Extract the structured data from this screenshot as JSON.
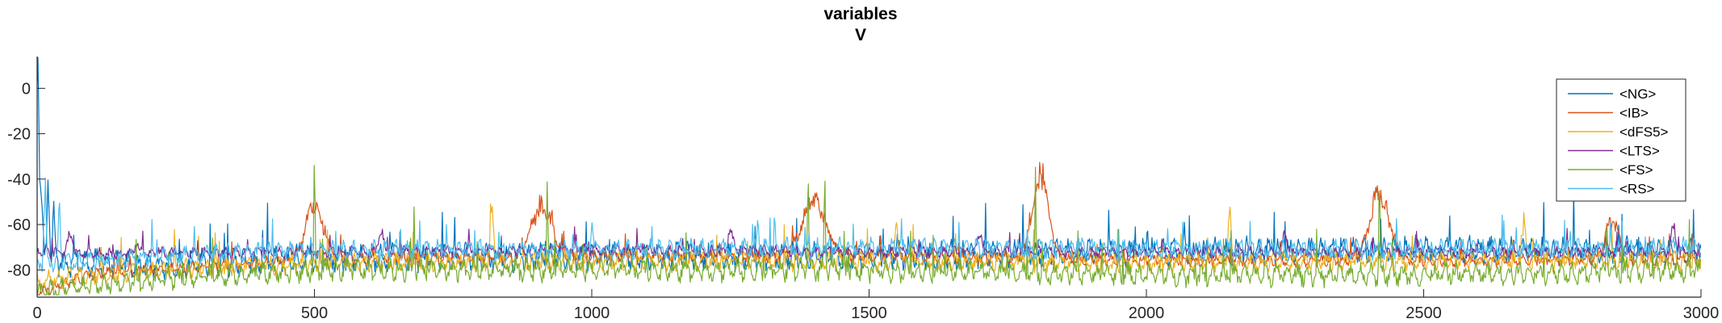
{
  "chart_data": {
    "type": "line",
    "title": "variables",
    "subtitle": "V",
    "xlabel": "",
    "ylabel": "",
    "xlim": [
      0,
      3000
    ],
    "ylim": [
      -92,
      14
    ],
    "x_ticks": [
      0,
      500,
      1000,
      1500,
      2000,
      2500,
      3000
    ],
    "y_ticks": [
      0,
      -20,
      -40,
      -60,
      -80
    ],
    "grid": false,
    "legend_position": "top-right",
    "series": [
      {
        "name": "<NG>",
        "color": "#0072BD",
        "baseline": [
          [
            0,
            -76
          ],
          [
            200,
            -78
          ],
          [
            500,
            -75
          ],
          [
            1000,
            -74
          ],
          [
            1500,
            -74
          ],
          [
            2000,
            -72
          ],
          [
            2500,
            -71
          ],
          [
            3000,
            -72
          ]
        ],
        "fluctuation": 7,
        "events": [
          [
            1,
            12,
            2
          ],
          [
            6,
            -38,
            3
          ],
          [
            20,
            -32,
            2
          ],
          [
            30,
            -52,
            2
          ]
        ]
      },
      {
        "name": "<IB>",
        "color": "#D95319",
        "baseline": [
          [
            0,
            -90
          ],
          [
            100,
            -82
          ],
          [
            500,
            -75
          ],
          [
            1000,
            -74
          ],
          [
            1500,
            -74
          ],
          [
            2000,
            -76
          ],
          [
            2500,
            -76
          ],
          [
            3000,
            -75
          ]
        ],
        "fluctuation": 3,
        "events": [
          [
            500,
            -48,
            16
          ],
          [
            910,
            -48,
            18
          ],
          [
            1400,
            -46,
            22
          ],
          [
            1810,
            -30,
            14
          ],
          [
            2420,
            -43,
            18
          ],
          [
            2840,
            -55,
            12
          ]
        ]
      },
      {
        "name": "<dFS5>",
        "color": "#EDB120",
        "baseline": [
          [
            0,
            -85
          ],
          [
            200,
            -80
          ],
          [
            500,
            -77
          ],
          [
            1000,
            -76
          ],
          [
            1500,
            -76
          ],
          [
            2000,
            -77
          ],
          [
            2500,
            -76
          ],
          [
            3000,
            -76
          ]
        ],
        "fluctuation": 5,
        "events": [
          [
            820,
            -50,
            3
          ],
          [
            1550,
            -55,
            3
          ],
          [
            2150,
            -52,
            3
          ],
          [
            2680,
            -55,
            3
          ]
        ]
      },
      {
        "name": "<LTS>",
        "color": "#7E2F8E",
        "baseline": [
          [
            0,
            -72
          ],
          [
            100,
            -73
          ],
          [
            500,
            -72
          ],
          [
            1000,
            -71
          ],
          [
            1500,
            -72
          ],
          [
            2000,
            -72
          ],
          [
            2500,
            -72
          ],
          [
            3000,
            -72
          ]
        ],
        "fluctuation": 3,
        "events": [
          [
            60,
            -62,
            4
          ],
          [
            180,
            -66,
            3
          ],
          [
            620,
            -62,
            4
          ],
          [
            1250,
            -60,
            4
          ],
          [
            1700,
            -62,
            4
          ],
          [
            2250,
            -62,
            4
          ],
          [
            2950,
            -60,
            4
          ]
        ]
      },
      {
        "name": "<FS>",
        "color": "#77AC30",
        "baseline": [
          [
            0,
            -90
          ],
          [
            200,
            -84
          ],
          [
            500,
            -80
          ],
          [
            1000,
            -80
          ],
          [
            1500,
            -80
          ],
          [
            2000,
            -82
          ],
          [
            2500,
            -82
          ],
          [
            3000,
            -80
          ]
        ],
        "fluctuation": 6,
        "events": [
          [
            500,
            -22,
            1
          ],
          [
            680,
            -46,
            1
          ],
          [
            920,
            -40,
            1
          ],
          [
            1390,
            -22,
            1
          ],
          [
            1420,
            -30,
            1
          ],
          [
            1800,
            -28,
            1
          ],
          [
            2420,
            -30,
            1
          ],
          [
            2830,
            -50,
            1
          ]
        ]
      },
      {
        "name": "<RS>",
        "color": "#4DBEEE",
        "baseline": [
          [
            0,
            -78
          ],
          [
            200,
            -74
          ],
          [
            500,
            -71
          ],
          [
            1000,
            -71
          ],
          [
            1500,
            -70
          ],
          [
            2000,
            -71
          ],
          [
            2500,
            -71
          ],
          [
            3000,
            -70
          ]
        ],
        "fluctuation": 5,
        "events": [
          [
            14,
            -36,
            2
          ],
          [
            40,
            -48,
            2
          ],
          [
            1000,
            -56,
            2
          ],
          [
            1300,
            -58,
            2
          ]
        ]
      }
    ]
  }
}
